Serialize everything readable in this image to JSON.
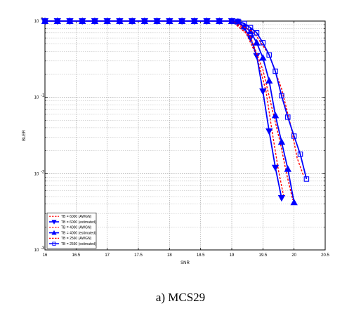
{
  "caption": "a) MCS29",
  "chart_data": {
    "type": "line",
    "xlabel": "SNR",
    "ylabel": "BLER",
    "xlim": [
      16,
      20.5
    ],
    "ylim": [
      0.001,
      1
    ],
    "yscale": "log",
    "grid": true,
    "legend_position": "bottom-left",
    "x_ticks": [
      "16",
      "16.5",
      "17",
      "17.5",
      "18",
      "18.5",
      "19",
      "19.5",
      "20",
      "20.5"
    ],
    "y_ticks": [
      {
        "value": 1,
        "base": "10",
        "exp": "0"
      },
      {
        "value": 0.1,
        "base": "10",
        "exp": "-1"
      },
      {
        "value": 0.01,
        "base": "10",
        "exp": "-2"
      },
      {
        "value": 0.001,
        "base": "10",
        "exp": "-3"
      }
    ],
    "series": [
      {
        "name": "TB = 6000 (AWGN)",
        "color": "#ff0000",
        "line": "dashed",
        "marker": "none",
        "x": [
          16,
          19.0,
          19.2,
          19.4,
          19.55,
          19.65,
          19.75,
          19.83
        ],
        "y": [
          1,
          1,
          0.78,
          0.35,
          0.12,
          0.035,
          0.011,
          0.0052
        ]
      },
      {
        "name": "TB = 6000 (estimated)",
        "color": "#0000ff",
        "line": "solid",
        "marker": "triangle-down",
        "x": [
          16,
          16.2,
          16.4,
          16.6,
          16.8,
          17.0,
          17.2,
          17.4,
          17.6,
          17.8,
          18.0,
          18.2,
          18.4,
          18.6,
          18.8,
          19.0,
          19.1,
          19.2,
          19.3,
          19.4,
          19.5,
          19.6,
          19.7,
          19.8
        ],
        "y": [
          1,
          1,
          1,
          1,
          1,
          1,
          1,
          1,
          1,
          1,
          1,
          1,
          1,
          1,
          1,
          1,
          0.96,
          0.82,
          0.6,
          0.35,
          0.12,
          0.036,
          0.012,
          0.0048
        ]
      },
      {
        "name": "TB = 4000 (AWGN)",
        "color": "#ff0000",
        "line": "dashed",
        "marker": "none",
        "x": [
          16,
          19.0,
          19.3,
          19.5,
          19.65,
          19.78,
          19.88,
          19.98
        ],
        "y": [
          1,
          1,
          0.62,
          0.23,
          0.07,
          0.025,
          0.01,
          0.0045
        ]
      },
      {
        "name": "TB = 4000 (estimated)",
        "color": "#0000ff",
        "line": "solid",
        "marker": "triangle-up",
        "x": [
          16,
          16.2,
          16.4,
          16.6,
          16.8,
          17.0,
          17.2,
          17.4,
          17.6,
          17.8,
          18.0,
          18.2,
          18.4,
          18.6,
          18.8,
          19.0,
          19.1,
          19.2,
          19.3,
          19.4,
          19.5,
          19.6,
          19.7,
          19.8,
          19.9,
          20.0
        ],
        "y": [
          1,
          1,
          1,
          1,
          1,
          1,
          1,
          1,
          1,
          1,
          1,
          1,
          1,
          1,
          1,
          1,
          0.98,
          0.85,
          0.73,
          0.52,
          0.33,
          0.165,
          0.058,
          0.026,
          0.0115,
          0.0042
        ]
      },
      {
        "name": "TB = 2560 (AWGN)",
        "color": "#ff0000",
        "line": "dashed",
        "marker": "none",
        "x": [
          16,
          19.0,
          19.35,
          19.6,
          19.8,
          19.95,
          20.05,
          20.15
        ],
        "y": [
          1,
          1,
          0.72,
          0.36,
          0.13,
          0.042,
          0.016,
          0.0095
        ]
      },
      {
        "name": "TB = 2560 (estimated)",
        "color": "#0000ff",
        "line": "solid",
        "marker": "square",
        "x": [
          16,
          16.2,
          16.4,
          16.6,
          16.8,
          17.0,
          17.2,
          17.4,
          17.6,
          17.8,
          18.0,
          18.2,
          18.4,
          18.6,
          18.8,
          19.0,
          19.1,
          19.2,
          19.3,
          19.4,
          19.5,
          19.6,
          19.7,
          19.8,
          19.9,
          20.0,
          20.1,
          20.2
        ],
        "y": [
          1,
          1,
          1,
          1,
          1,
          1,
          1,
          1,
          1,
          1,
          1,
          1,
          1,
          1,
          1,
          1,
          0.99,
          0.93,
          0.82,
          0.7,
          0.52,
          0.36,
          0.22,
          0.105,
          0.055,
          0.031,
          0.018,
          0.0085
        ]
      }
    ]
  }
}
